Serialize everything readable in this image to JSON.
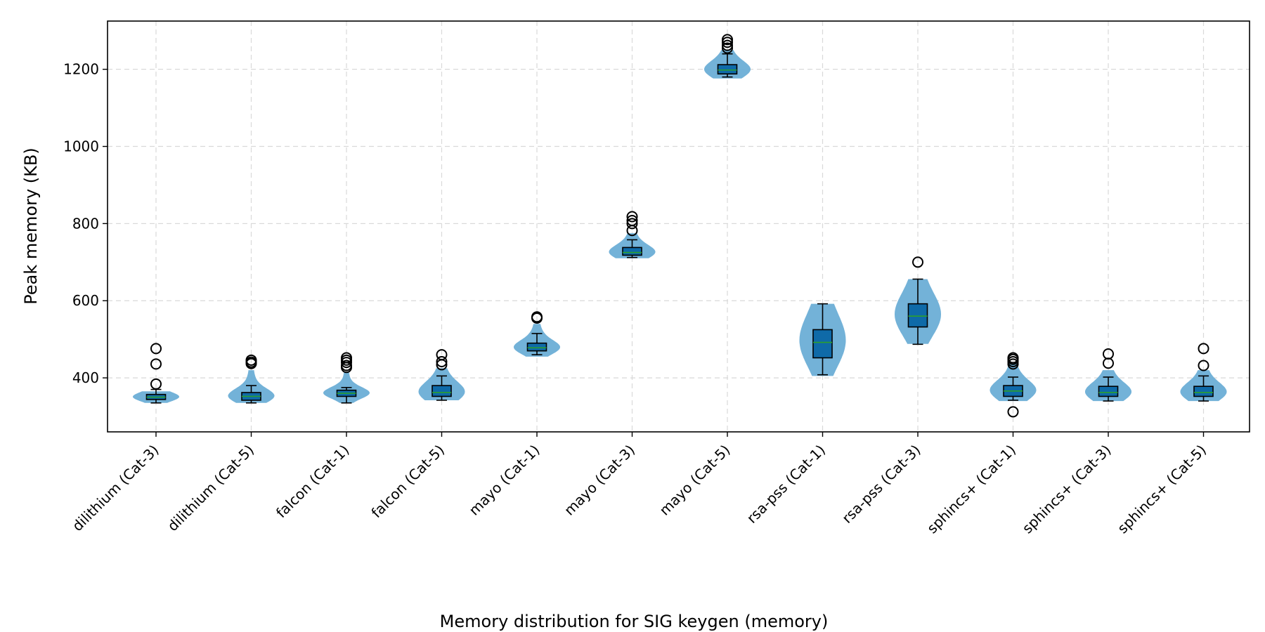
{
  "chart_data": {
    "type": "violin",
    "caption": "Memory distribution for SIG keygen (memory)",
    "title": "",
    "xlabel": "",
    "ylabel": "Peak memory (KB)",
    "ylim": [
      260,
      1325
    ],
    "yticks": [
      400,
      600,
      800,
      1000,
      1200
    ],
    "grid": true,
    "categories": [
      "dilithium (Cat-3)",
      "dilithium (Cat-5)",
      "falcon (Cat-1)",
      "falcon (Cat-5)",
      "mayo (Cat-1)",
      "mayo (Cat-3)",
      "mayo (Cat-5)",
      "rsa-pss (Cat-1)",
      "rsa-pss (Cat-3)",
      "sphincs+ (Cat-1)",
      "sphincs+ (Cat-3)",
      "sphincs+ (Cat-5)"
    ],
    "distributions": [
      {
        "label": "dilithium (Cat-3)",
        "min": 335,
        "q1": 344,
        "median": 350,
        "q3": 357,
        "max": 370,
        "violin_low": 335,
        "violin_high": 365,
        "outliers": [
          384,
          436,
          476
        ]
      },
      {
        "label": "dilithium (Cat-5)",
        "min": 335,
        "q1": 342,
        "median": 352,
        "q3": 362,
        "max": 380,
        "violin_low": 335,
        "violin_high": 420,
        "outliers": [
          437,
          441,
          446
        ]
      },
      {
        "label": "falcon (Cat-1)",
        "min": 335,
        "q1": 352,
        "median": 360,
        "q3": 368,
        "max": 375,
        "violin_low": 335,
        "violin_high": 415,
        "outliers": [
          427,
          432,
          440,
          446,
          452
        ]
      },
      {
        "label": "falcon (Cat-5)",
        "min": 342,
        "q1": 352,
        "median": 362,
        "q3": 380,
        "max": 405,
        "violin_low": 342,
        "violin_high": 425,
        "outliers": [
          434,
          442,
          460
        ]
      },
      {
        "label": "mayo (Cat-1)",
        "min": 460,
        "q1": 470,
        "median": 478,
        "q3": 490,
        "max": 515,
        "violin_low": 455,
        "violin_high": 540,
        "outliers": [
          555,
          558
        ]
      },
      {
        "label": "mayo (Cat-3)",
        "min": 712,
        "q1": 718,
        "median": 725,
        "q3": 738,
        "max": 758,
        "violin_low": 710,
        "violin_high": 775,
        "outliers": [
          782,
          800,
          808,
          818
        ]
      },
      {
        "label": "mayo (Cat-5)",
        "min": 1180,
        "q1": 1188,
        "median": 1198,
        "q3": 1212,
        "max": 1240,
        "violin_low": 1176,
        "violin_high": 1250,
        "outliers": [
          1255,
          1262,
          1270,
          1277
        ]
      },
      {
        "label": "rsa-pss (Cat-1)",
        "min": 408,
        "q1": 452,
        "median": 492,
        "q3": 525,
        "max": 592,
        "violin_low": 405,
        "violin_high": 592,
        "outliers": []
      },
      {
        "label": "rsa-pss (Cat-3)",
        "min": 487,
        "q1": 532,
        "median": 560,
        "q3": 592,
        "max": 656,
        "violin_low": 488,
        "violin_high": 656,
        "outliers": [
          700
        ]
      },
      {
        "label": "sphincs+ (Cat-1)",
        "min": 342,
        "q1": 352,
        "median": 366,
        "q3": 380,
        "max": 402,
        "violin_low": 340,
        "violin_high": 440,
        "outliers": [
          312,
          436,
          442,
          448,
          452
        ]
      },
      {
        "label": "sphincs+ (Cat-3)",
        "min": 340,
        "q1": 352,
        "median": 362,
        "q3": 378,
        "max": 402,
        "violin_low": 340,
        "violin_high": 420,
        "outliers": [
          438,
          462
        ]
      },
      {
        "label": "sphincs+ (Cat-5)",
        "min": 340,
        "q1": 352,
        "median": 362,
        "q3": 378,
        "max": 405,
        "violin_low": 340,
        "violin_high": 420,
        "outliers": [
          432,
          476
        ]
      }
    ],
    "colors": {
      "violin": "#6baed6",
      "box": "#0f6aa8",
      "median": "#2ca02c",
      "grid": "#d9d9d9"
    }
  }
}
